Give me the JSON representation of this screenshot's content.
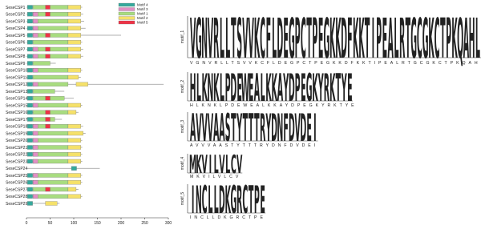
{
  "motif_legend": [
    {
      "name": "Motif 4",
      "color": "#35a99c"
    },
    {
      "name": "Motif 3",
      "color": "#e08fc4"
    },
    {
      "name": "Motif 1",
      "color": "#a8dc80"
    },
    {
      "name": "Motif 2",
      "color": "#f5e16a"
    },
    {
      "name": "Motif 5",
      "color": "#ee3346"
    }
  ],
  "axis": {
    "xlim": [
      0,
      300
    ],
    "xticks": [
      0,
      50,
      100,
      150,
      200,
      250,
      300
    ]
  },
  "genes": [
    {
      "name": "SeseCSP1",
      "length": 118,
      "motifs": [
        [
          2,
          14,
          88
        ],
        [
          0,
          2,
          13
        ],
        [
          4,
          40,
          50
        ],
        [
          3,
          88,
          115
        ]
      ]
    },
    {
      "name": "SeseCSP2",
      "length": 120,
      "motifs": [
        [
          2,
          14,
          88
        ],
        [
          0,
          2,
          13
        ],
        [
          1,
          14,
          24
        ],
        [
          4,
          40,
          50
        ],
        [
          3,
          88,
          115
        ]
      ]
    },
    {
      "name": "SeseCSP3",
      "length": 122,
      "motifs": [
        [
          2,
          14,
          88
        ],
        [
          0,
          2,
          13
        ],
        [
          1,
          14,
          24
        ],
        [
          3,
          88,
          115
        ]
      ]
    },
    {
      "name": "SeseCSP4",
      "length": 125,
      "motifs": [
        [
          2,
          14,
          88
        ],
        [
          0,
          2,
          13
        ],
        [
          1,
          14,
          24
        ],
        [
          3,
          88,
          115
        ]
      ]
    },
    {
      "name": "SeseCSP5",
      "length": 200,
      "motifs": [
        [
          2,
          14,
          88
        ],
        [
          0,
          2,
          13
        ],
        [
          1,
          14,
          24
        ],
        [
          4,
          40,
          50
        ],
        [
          3,
          88,
          115
        ]
      ]
    },
    {
      "name": "SeseCSP6",
      "length": 118,
      "motifs": [
        [
          2,
          14,
          88
        ],
        [
          0,
          2,
          13
        ],
        [
          3,
          88,
          115
        ]
      ]
    },
    {
      "name": "SeseCSP7",
      "length": 120,
      "motifs": [
        [
          2,
          14,
          88
        ],
        [
          0,
          2,
          13
        ],
        [
          1,
          14,
          24
        ],
        [
          4,
          40,
          50
        ],
        [
          3,
          88,
          115
        ]
      ]
    },
    {
      "name": "SeseCSP8",
      "length": 120,
      "motifs": [
        [
          2,
          14,
          88
        ],
        [
          0,
          2,
          13
        ],
        [
          1,
          14,
          24
        ],
        [
          4,
          40,
          50
        ],
        [
          3,
          88,
          115
        ]
      ]
    },
    {
      "name": "SeseCSP9",
      "length": 62,
      "motifs": [
        [
          2,
          14,
          50
        ],
        [
          0,
          2,
          13
        ]
      ]
    },
    {
      "name": "SeseCSP10",
      "length": 118,
      "motifs": [
        [
          2,
          14,
          88
        ],
        [
          0,
          2,
          13
        ],
        [
          1,
          14,
          24
        ],
        [
          3,
          88,
          115
        ]
      ]
    },
    {
      "name": "SeseCSP11",
      "length": 115,
      "motifs": [
        [
          2,
          14,
          88
        ],
        [
          0,
          2,
          13
        ],
        [
          3,
          88,
          110
        ]
      ]
    },
    {
      "name": "SeseCSP12",
      "length": 290,
      "motifs": [
        [
          2,
          14,
          88
        ],
        [
          0,
          2,
          13
        ],
        [
          1,
          14,
          24
        ],
        [
          3,
          105,
          130
        ]
      ]
    },
    {
      "name": "SeseCSP13",
      "length": 80,
      "motifs": [
        [
          2,
          14,
          60
        ],
        [
          0,
          2,
          13
        ]
      ]
    },
    {
      "name": "SeseCSP14",
      "length": 100,
      "motifs": [
        [
          2,
          14,
          80
        ],
        [
          0,
          2,
          13
        ],
        [
          4,
          40,
          50
        ]
      ]
    },
    {
      "name": "SeseCSP15",
      "length": 118,
      "motifs": [
        [
          2,
          14,
          88
        ],
        [
          0,
          2,
          13
        ],
        [
          1,
          14,
          24
        ],
        [
          3,
          88,
          115
        ]
      ]
    },
    {
      "name": "SeseCSP16",
      "length": 110,
      "motifs": [
        [
          2,
          14,
          88
        ],
        [
          0,
          2,
          13
        ],
        [
          4,
          40,
          50
        ],
        [
          3,
          88,
          105
        ]
      ]
    },
    {
      "name": "SeseCSP17",
      "length": 75,
      "motifs": [
        [
          2,
          14,
          60
        ],
        [
          0,
          2,
          13
        ],
        [
          4,
          40,
          50
        ]
      ]
    },
    {
      "name": "SeseCSP18",
      "length": 120,
      "motifs": [
        [
          2,
          14,
          88
        ],
        [
          0,
          2,
          13
        ],
        [
          1,
          14,
          24
        ],
        [
          4,
          40,
          50
        ],
        [
          3,
          88,
          115
        ]
      ]
    },
    {
      "name": "SeseCSP19",
      "length": 125,
      "motifs": [
        [
          2,
          14,
          88
        ],
        [
          0,
          2,
          13
        ],
        [
          1,
          14,
          24
        ],
        [
          3,
          88,
          120
        ]
      ]
    },
    {
      "name": "SeseCSP20",
      "length": 118,
      "motifs": [
        [
          2,
          14,
          88
        ],
        [
          0,
          2,
          13
        ],
        [
          1,
          14,
          24
        ],
        [
          3,
          88,
          115
        ]
      ]
    },
    {
      "name": "SeseCSP21",
      "length": 118,
      "motifs": [
        [
          2,
          14,
          88
        ],
        [
          0,
          2,
          13
        ],
        [
          1,
          14,
          24
        ],
        [
          3,
          88,
          115
        ]
      ]
    },
    {
      "name": "SeseCSP22",
      "length": 118,
      "motifs": [
        [
          2,
          14,
          88
        ],
        [
          0,
          2,
          13
        ],
        [
          1,
          14,
          24
        ],
        [
          3,
          88,
          115
        ]
      ]
    },
    {
      "name": "SeseCSP23",
      "length": 118,
      "motifs": [
        [
          2,
          14,
          88
        ],
        [
          0,
          2,
          13
        ],
        [
          1,
          14,
          24
        ],
        [
          3,
          88,
          115
        ]
      ]
    },
    {
      "name": "SeseCSP24",
      "length": 155,
      "motifs": [
        [
          0,
          95,
          106
        ]
      ]
    },
    {
      "name": "SeseCSP25",
      "length": 118,
      "motifs": [
        [
          2,
          14,
          88
        ],
        [
          0,
          2,
          13
        ],
        [
          1,
          14,
          24
        ],
        [
          3,
          88,
          115
        ]
      ]
    },
    {
      "name": "SeseCSP26",
      "length": 118,
      "motifs": [
        [
          2,
          14,
          88
        ],
        [
          0,
          2,
          13
        ],
        [
          1,
          14,
          24
        ],
        [
          3,
          88,
          115
        ]
      ]
    },
    {
      "name": "SeseCSP27",
      "length": 110,
      "motifs": [
        [
          2,
          14,
          88
        ],
        [
          0,
          2,
          13
        ],
        [
          4,
          40,
          50
        ],
        [
          3,
          88,
          105
        ]
      ]
    },
    {
      "name": "SeseCSP28",
      "length": 118,
      "motifs": [
        [
          2,
          14,
          88
        ],
        [
          0,
          2,
          13
        ],
        [
          1,
          14,
          24
        ],
        [
          3,
          88,
          115
        ]
      ]
    },
    {
      "name": "SeseCSP29",
      "length": 70,
      "motifs": [
        [
          0,
          2,
          13
        ],
        [
          3,
          40,
          65
        ]
      ]
    }
  ],
  "residue_colors": {
    "A": "#2f6fdc",
    "C": "#2f6fdc",
    "F": "#2f6fdc",
    "I": "#2f6fdc",
    "L": "#2f6fdc",
    "V": "#2f6fdc",
    "W": "#2f6fdc",
    "M": "#2f6fdc",
    "N": "#25a33a",
    "Q": "#25a33a",
    "S": "#25a33a",
    "T": "#25a33a",
    "D": "#c623c6",
    "E": "#c623c6",
    "K": "#e02a2a",
    "R": "#e02a2a",
    "G": "#f08c1a",
    "H": "#e79fd0",
    "P": "#d8c21c",
    "Y": "#22b0b8"
  },
  "logos": [
    {
      "label": "motif_1",
      "consensus": "VGNVRLLTSVVKCFLDEGPCTPEGKKDFKKTIPEALRTGCGKCTPKQAHLI"
    },
    {
      "label": "motif_2",
      "consensus": "HLKNKLPDEWEALKKAYDPEGKYRKTYE"
    },
    {
      "label": "motif_3",
      "consensus": "AVVVAASTYTTTRYDNFDVDEI"
    },
    {
      "label": "motif_4",
      "consensus": "MKVILVLCV"
    },
    {
      "label": "motif_5",
      "consensus": "INCLLDKGRCTPE"
    }
  ]
}
